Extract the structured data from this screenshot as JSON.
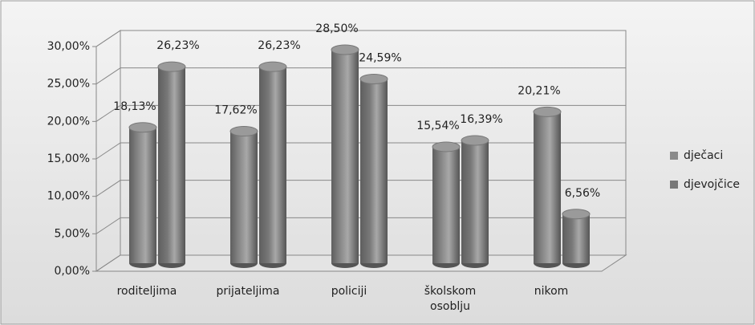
{
  "chart_data": {
    "type": "bar3d",
    "categories": [
      "roditeljima",
      "prijateljima",
      "policiji",
      "školskom osoblju",
      "nikom"
    ],
    "series": [
      {
        "name": "dječaci",
        "color": "#8a8a8a",
        "values": [
          18.13,
          17.62,
          28.5,
          15.54,
          20.21
        ],
        "value_labels": [
          "18,13%",
          "17,62%",
          "28,50%",
          "15,54%",
          "20,21%"
        ]
      },
      {
        "name": "djevojčice",
        "color": "#787878",
        "values": [
          26.23,
          26.23,
          24.59,
          16.39,
          6.56
        ],
        "value_labels": [
          "26,23%",
          "26,23%",
          "24,59%",
          "16,39%",
          "6,56%"
        ]
      }
    ],
    "ylim": [
      0,
      30
    ],
    "yticks": [
      {
        "value": 0,
        "label": "0,00%"
      },
      {
        "value": 5,
        "label": "5,00%"
      },
      {
        "value": 10,
        "label": "10,00%"
      },
      {
        "value": 15,
        "label": "15,00%"
      },
      {
        "value": 20,
        "label": "20,00%"
      },
      {
        "value": 25,
        "label": "25,00%"
      },
      {
        "value": 30,
        "label": "30,00%"
      }
    ],
    "grid": true,
    "legend": "right"
  }
}
